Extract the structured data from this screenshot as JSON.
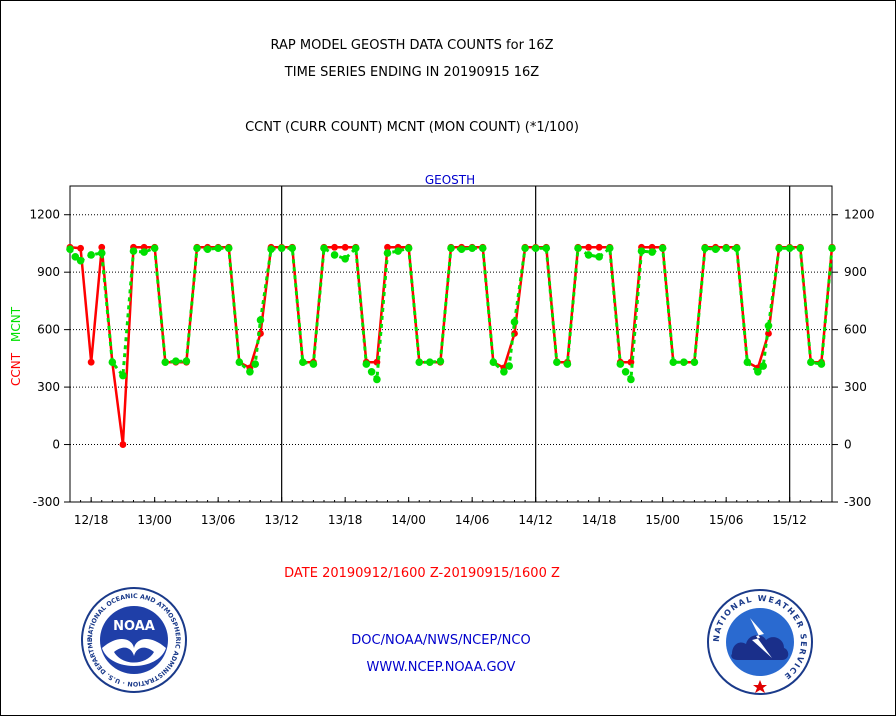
{
  "header": {
    "line1": "RAP MODEL GEOSTH DATA COUNTS for 16Z",
    "line2": "TIME SERIES ENDING IN 20190915 16Z",
    "line3": "CCNT (CURR COUNT) MCNT (MON COUNT) (*1/100)"
  },
  "footer": {
    "date_range": "DATE 20190912/1600 Z-20190915/1600 Z",
    "org": "DOC/NOAA/NWS/NCEP/NCO",
    "url": "WWW.NCEP.NOAA.GOV"
  },
  "logos": {
    "noaa_text": "NOAA",
    "noaa_ring": "NATIONAL OCEANIC AND ATMOSPHERIC ADMINISTRATION · U.S. DEPARTMENT OF COMMERCE",
    "nws_ring": "NATIONAL WEATHER SERVICE"
  },
  "colors": {
    "ccnt": "#ff0000",
    "mcnt": "#00e000",
    "title_blue": "#0000cc",
    "date_red": "#ff0000"
  },
  "chart_data": {
    "type": "line",
    "title": "GEOSTH",
    "ylabel_left": [
      "CCNT",
      "MCNT"
    ],
    "ylim": [
      -300,
      1350
    ],
    "yticks": [
      -300,
      0,
      300,
      600,
      900,
      1200
    ],
    "grid": true,
    "x_range_hours": [
      0,
      72
    ],
    "x_start": "2019-09-12 16Z",
    "xticks": [
      "12/18",
      "13/00",
      "13/06",
      "13/12",
      "13/18",
      "14/00",
      "14/06",
      "14/12",
      "14/18",
      "15/00",
      "15/06",
      "15/12"
    ],
    "xticks_hours": [
      2,
      8,
      14,
      20,
      26,
      32,
      38,
      44,
      50,
      56,
      62,
      68
    ],
    "day_boundaries_hours": [
      20,
      44,
      68
    ],
    "series": [
      {
        "name": "CCNT",
        "color": "#ff0000",
        "x": [
          0,
          1,
          2,
          3,
          4,
          5,
          6,
          7,
          8,
          9,
          10,
          11,
          12,
          13,
          14,
          15,
          16,
          17,
          18,
          19,
          20,
          21,
          22,
          23,
          24,
          25,
          26,
          27,
          28,
          29,
          30,
          31,
          32,
          33,
          34,
          35,
          36,
          37,
          38,
          39,
          40,
          41,
          42,
          43,
          44,
          45,
          46,
          47,
          48,
          49,
          50,
          51,
          52,
          53,
          54,
          55,
          56,
          57,
          58,
          59,
          60,
          61,
          62,
          63,
          64,
          65,
          66,
          67,
          68,
          69,
          70,
          71,
          72
        ],
        "y": [
          1030,
          1025,
          430,
          1030,
          430,
          0,
          1030,
          1030,
          1030,
          430,
          430,
          430,
          1030,
          1030,
          1030,
          1030,
          430,
          400,
          580,
          1030,
          1030,
          1030,
          430,
          430,
          1030,
          1030,
          1030,
          1030,
          430,
          430,
          1030,
          1030,
          1030,
          430,
          430,
          430,
          1030,
          1030,
          1030,
          1030,
          430,
          400,
          580,
          1030,
          1030,
          1030,
          430,
          430,
          1030,
          1030,
          1030,
          1030,
          430,
          430,
          1030,
          1030,
          1030,
          430,
          430,
          430,
          1030,
          1030,
          1030,
          1030,
          430,
          400,
          580,
          1030,
          1030,
          1030,
          430,
          430,
          1030
        ]
      },
      {
        "name": "MCNT",
        "color": "#00e000",
        "x": [
          0,
          0.5,
          1,
          2,
          3,
          4,
          5,
          6,
          7,
          8,
          9,
          10,
          11,
          12,
          13,
          14,
          15,
          16,
          17,
          17.5,
          18,
          19,
          20,
          21,
          22,
          23,
          24,
          25,
          26,
          27,
          28,
          28.5,
          29,
          30,
          31,
          32,
          33,
          34,
          35,
          36,
          37,
          38,
          39,
          40,
          41,
          41.5,
          42,
          43,
          44,
          45,
          46,
          47,
          48,
          49,
          50,
          51,
          52,
          52.5,
          53,
          54,
          55,
          56,
          57,
          58,
          59,
          60,
          61,
          62,
          63,
          64,
          65,
          65.5,
          66,
          67,
          68,
          69,
          70,
          71,
          72
        ],
        "y": [
          1020,
          980,
          960,
          990,
          1000,
          430,
          360,
          1010,
          1005,
          1025,
          430,
          435,
          435,
          1025,
          1020,
          1025,
          1025,
          430,
          380,
          420,
          650,
          1020,
          1025,
          1025,
          430,
          420,
          1025,
          990,
          970,
          1025,
          420,
          380,
          340,
          1000,
          1010,
          1025,
          430,
          430,
          435,
          1025,
          1020,
          1025,
          1025,
          430,
          380,
          410,
          640,
          1025,
          1025,
          1025,
          430,
          420,
          1025,
          990,
          980,
          1025,
          420,
          380,
          340,
          1010,
          1005,
          1025,
          430,
          430,
          430,
          1025,
          1020,
          1025,
          1025,
          430,
          380,
          410,
          620,
          1025,
          1025,
          1025,
          430,
          420,
          1025
        ]
      }
    ]
  }
}
